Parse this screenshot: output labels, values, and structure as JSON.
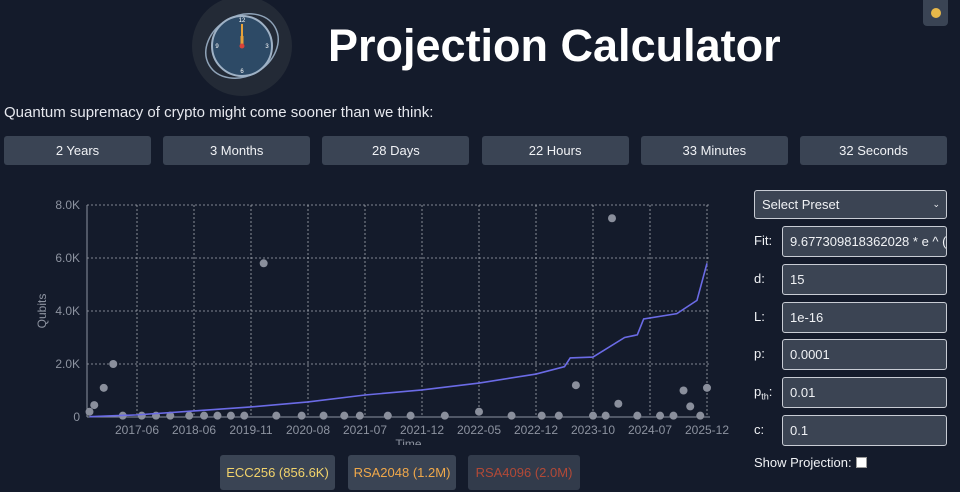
{
  "header": {
    "title": "Projection Calculator",
    "clock_numbers": [
      "12",
      "3",
      "6",
      "9"
    ],
    "subtitle": "Quantum supremacy of crypto might come sooner than we think:"
  },
  "countdown": [
    "2 Years",
    "3 Months",
    "28 Days",
    "22 Hours",
    "33 Minutes",
    "32 Seconds"
  ],
  "chart_data": {
    "type": "scatter",
    "x_label": "Time",
    "y_label": "Qubits",
    "ylim": [
      0,
      8000
    ],
    "yticks": [
      0,
      {
        "value": 2000,
        "label": "2.0K"
      },
      {
        "value": 4000,
        "label": "4.0K"
      },
      {
        "value": 6000,
        "label": "6.0K"
      },
      {
        "value": 8000,
        "label": "8.0K"
      }
    ],
    "xticks": [
      "2017-06",
      "2018-06",
      "2019-11",
      "2020-08",
      "2021-07",
      "2021-12",
      "2022-05",
      "2022-12",
      "2023-10",
      "2024-07",
      "2025-12"
    ],
    "grid": true,
    "series": [
      {
        "type": "scatter",
        "color": "#8a8f9c",
        "x": [
          "2016-08",
          "2016-09",
          "2016-11",
          "2017-01",
          "2017-03",
          "2017-07",
          "2017-10",
          "2018-01",
          "2018-05",
          "2018-09",
          "2019-01",
          "2019-05",
          "2019-09",
          "2020-01",
          "2020-03",
          "2020-07",
          "2020-11",
          "2021-03",
          "2021-06",
          "2021-09",
          "2021-11",
          "2022-02",
          "2022-05",
          "2022-09",
          "2023-01",
          "2023-04",
          "2023-07",
          "2023-10",
          "2023-12",
          "2024-01",
          "2024-02",
          "2024-05",
          "2024-10",
          "2025-02",
          "2025-05",
          "2025-07",
          "2025-10",
          "2025-12"
        ],
        "values": [
          200,
          450,
          1100,
          2000,
          50,
          50,
          50,
          50,
          50,
          50,
          50,
          50,
          50,
          5800,
          50,
          50,
          50,
          50,
          50,
          50,
          50,
          50,
          200,
          50,
          50,
          50,
          1200,
          50,
          50,
          7500,
          500,
          50,
          50,
          50,
          1000,
          400,
          50,
          1100
        ]
      },
      {
        "type": "line",
        "color": "#6b6be6",
        "x": [
          "2016-08",
          "2017-06",
          "2018-06",
          "2019-11",
          "2020-08",
          "2021-07",
          "2021-12",
          "2022-05",
          "2022-12",
          "2023-05",
          "2023-06",
          "2023-10",
          "2024-03",
          "2024-05",
          "2024-06",
          "2025-03",
          "2025-09",
          "2025-12"
        ],
        "values": [
          10,
          80,
          230,
          380,
          570,
          830,
          1020,
          1280,
          1620,
          1900,
          2230,
          2260,
          3000,
          3100,
          3700,
          3900,
          4400,
          5800
        ]
      }
    ]
  },
  "thresholds": [
    {
      "label": "ECC256 (856.6K)",
      "color": "#f2d36b"
    },
    {
      "label": "RSA2048 (1.2M)",
      "color": "#f0a84a"
    },
    {
      "label": "RSA4096 (2.0M)",
      "color": "#d9553a"
    }
  ],
  "controls": {
    "preset": "Select Preset",
    "fields": [
      {
        "label": "Fit:",
        "value": "9.677309818362028 * e ^ ("
      },
      {
        "label": "d:",
        "value": 15
      },
      {
        "label": "L:",
        "value": 1e-16
      },
      {
        "label": "p:",
        "value": 0.0001
      },
      {
        "label": "p",
        "sub": "th",
        "suffix": ":",
        "value": 0.01
      },
      {
        "label": "c:",
        "value": 0.1
      }
    ],
    "show_projection": "Show Projection:"
  }
}
